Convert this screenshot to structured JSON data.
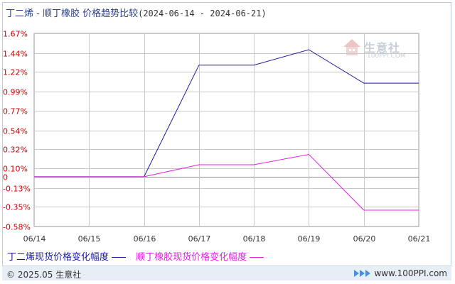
{
  "title": {
    "main": "丁二烯 - 顺丁橡胶 价格趋势比较",
    "range": "(2024-06-14 - 2024-06-21)"
  },
  "watermark": {
    "name": "生意社",
    "url": "100PPI.COM"
  },
  "footer": {
    "copyright": "© 2025.05 生意社",
    "site": "www.100PPI.com"
  },
  "colors": {
    "series1": "#1a1aa0",
    "series2": "#e020e0",
    "grid": "#c8c8c8",
    "axis_text": "#cc0000",
    "date_text": "#333333"
  },
  "chart_data": {
    "type": "line",
    "x": [
      "06/14",
      "06/15",
      "06/16",
      "06/17",
      "06/18",
      "06/19",
      "06/20",
      "06/21"
    ],
    "y_ticks": [
      "1.67%",
      "1.44%",
      "1.22%",
      "0.99%",
      "0.77%",
      "0.54%",
      "0.32%",
      "0.10%",
      "0",
      "-0.13%",
      "-0.35%",
      "-0.58%"
    ],
    "y_tick_values": [
      1.67,
      1.44,
      1.22,
      0.99,
      0.77,
      0.54,
      0.32,
      0.1,
      0,
      -0.13,
      -0.35,
      -0.58
    ],
    "ylim": [
      -0.58,
      1.67
    ],
    "series": [
      {
        "name": "丁二烯现货价格变化幅度",
        "values": [
          0,
          0,
          0,
          1.3,
          1.3,
          1.48,
          1.09,
          1.09
        ]
      },
      {
        "name": "顺丁橡胶现货价格变化幅度",
        "values": [
          0,
          0,
          0,
          0.14,
          0.14,
          0.26,
          -0.39,
          -0.39
        ]
      }
    ],
    "grid": true,
    "legend_position": "bottom-left"
  }
}
